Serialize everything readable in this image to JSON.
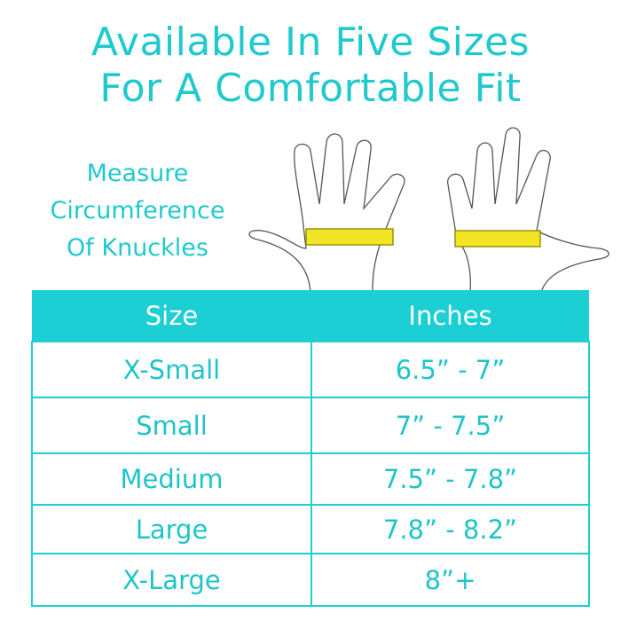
{
  "title_line1": "Available In Five Sizes",
  "title_line2": "For A Comfortable Fit",
  "measure": {
    "line1": "Measure",
    "line2": "Circumference",
    "line3": "Of Knuckles"
  },
  "colors": {
    "accent": "#1ccfd4",
    "tape": "#f2e524"
  },
  "table": {
    "headers": [
      "Size",
      "Inches"
    ],
    "rows": [
      [
        "X-Small",
        "6.5” - 7”"
      ],
      [
        "Small",
        "7” - 7.5”"
      ],
      [
        "Medium",
        "7.5” - 7.8”"
      ],
      [
        "Large",
        "7.8” - 8.2”"
      ],
      [
        "X-Large",
        "8”+"
      ]
    ]
  }
}
